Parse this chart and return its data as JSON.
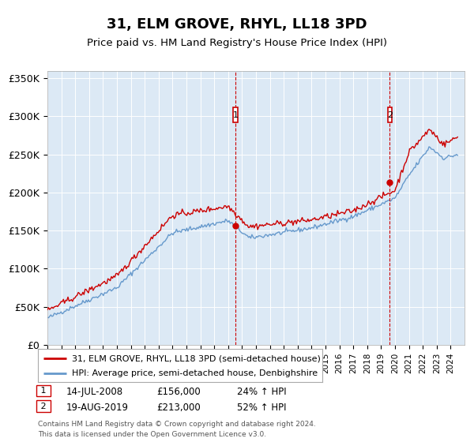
{
  "title": "31, ELM GROVE, RHYL, LL18 3PD",
  "subtitle": "Price paid vs. HM Land Registry's House Price Index (HPI)",
  "ylim": [
    0,
    360000
  ],
  "xlim_start": 1995.0,
  "xlim_end": 2025.0,
  "background_color": "#dce9f5",
  "hpi_color": "#6699cc",
  "price_color": "#cc0000",
  "sale1_date": 2008.53,
  "sale1_price": 156000,
  "sale2_date": 2019.63,
  "sale2_price": 213000,
  "legend_line1": "31, ELM GROVE, RHYL, LL18 3PD (semi-detached house)",
  "legend_line2": "HPI: Average price, semi-detached house, Denbighshire",
  "footnote1": "Contains HM Land Registry data © Crown copyright and database right 2024.",
  "footnote2": "This data is licensed under the Open Government Licence v3.0.",
  "sale1_label": "1",
  "sale2_label": "2",
  "sale1_info": "14-JUL-2008",
  "sale1_val": "£156,000",
  "sale1_pct": "24% ↑ HPI",
  "sale2_info": "19-AUG-2019",
  "sale2_val": "£213,000",
  "sale2_pct": "52% ↑ HPI"
}
